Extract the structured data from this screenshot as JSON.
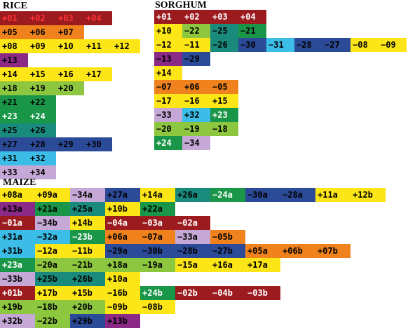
{
  "palette": {
    "darkred": "#9b1b1e",
    "orange": "#f0821e",
    "yellow": "#fde618",
    "purple": "#8a2a86",
    "green": "#8dc63f",
    "darkgreen": "#1a9648",
    "teal": "#1a8a7c",
    "navy": "#2b4a97",
    "skyblue": "#3bbde8",
    "lavender": "#c6a8d6",
    "text_light": "#ffffff",
    "text_dark": "#000000",
    "text_red": "#ff3333"
  },
  "sections": [
    {
      "key": "rice",
      "title": "RICE",
      "rows": [
        [
          {
            "t": "+01",
            "c": "darkred",
            "f": "text_red"
          },
          {
            "t": "+02",
            "c": "darkred",
            "f": "text_red"
          },
          {
            "t": "+03",
            "c": "darkred",
            "f": "text_red"
          },
          {
            "t": "+04",
            "c": "darkred",
            "f": "text_red"
          }
        ],
        [
          {
            "t": "+05",
            "c": "orange"
          },
          {
            "t": "+06",
            "c": "orange"
          },
          {
            "t": "+07",
            "c": "orange"
          }
        ],
        [
          {
            "t": "+08",
            "c": "yellow"
          },
          {
            "t": "+09",
            "c": "yellow"
          },
          {
            "t": "+10",
            "c": "yellow"
          },
          {
            "t": "+11",
            "c": "yellow"
          },
          {
            "t": "+12",
            "c": "yellow"
          }
        ],
        [
          {
            "t": "+13",
            "c": "purple"
          }
        ],
        [
          {
            "t": "+14",
            "c": "yellow"
          },
          {
            "t": "+15",
            "c": "yellow"
          },
          {
            "t": "+16",
            "c": "yellow"
          },
          {
            "t": "+17",
            "c": "yellow"
          }
        ],
        [
          {
            "t": "+18",
            "c": "green"
          },
          {
            "t": "+19",
            "c": "green"
          },
          {
            "t": "+20",
            "c": "green"
          }
        ],
        [
          {
            "t": "+21",
            "c": "darkgreen"
          },
          {
            "t": "+22",
            "c": "darkgreen"
          }
        ],
        [
          {
            "t": "+23",
            "c": "darkgreen",
            "f": "text_light"
          },
          {
            "t": "+24",
            "c": "darkgreen",
            "f": "text_light"
          }
        ],
        [
          {
            "t": "+25",
            "c": "teal"
          },
          {
            "t": "+26",
            "c": "teal"
          }
        ],
        [
          {
            "t": "+27",
            "c": "navy"
          },
          {
            "t": "+28",
            "c": "navy"
          },
          {
            "t": "+29",
            "c": "navy"
          },
          {
            "t": "+30",
            "c": "navy"
          }
        ],
        [
          {
            "t": "+31",
            "c": "skyblue"
          },
          {
            "t": "+32",
            "c": "skyblue"
          }
        ],
        [
          {
            "t": "+33",
            "c": "lavender"
          },
          {
            "t": "+34",
            "c": "lavender"
          }
        ]
      ]
    },
    {
      "key": "sorghum",
      "title": "SORGHUM",
      "rows": [
        [
          {
            "t": "+01",
            "c": "darkred",
            "f": "text_light"
          },
          {
            "t": "+02",
            "c": "darkred",
            "f": "text_light"
          },
          {
            "t": "+03",
            "c": "darkred",
            "f": "text_light"
          },
          {
            "t": "+04",
            "c": "darkred",
            "f": "text_light"
          }
        ],
        [
          {
            "t": "+10",
            "c": "yellow"
          },
          {
            "t": "−22",
            "c": "green"
          },
          {
            "t": "−25",
            "c": "teal"
          },
          {
            "t": "−21",
            "c": "darkgreen"
          }
        ],
        [
          {
            "t": "−12",
            "c": "yellow"
          },
          {
            "t": "−11",
            "c": "yellow"
          },
          {
            "t": "−26",
            "c": "teal"
          },
          {
            "t": "−30",
            "c": "navy"
          },
          {
            "t": "−31",
            "c": "skyblue"
          },
          {
            "t": "−28",
            "c": "navy"
          },
          {
            "t": "−27",
            "c": "navy"
          },
          {
            "t": "−08",
            "c": "yellow"
          },
          {
            "t": "−09",
            "c": "yellow"
          }
        ],
        [
          {
            "t": "−13",
            "c": "purple"
          },
          {
            "t": "−29",
            "c": "navy"
          }
        ],
        [
          {
            "t": "+14",
            "c": "yellow"
          }
        ],
        [
          {
            "t": "−07",
            "c": "orange"
          },
          {
            "t": "+06",
            "c": "orange"
          },
          {
            "t": "−05",
            "c": "orange"
          }
        ],
        [
          {
            "t": "−17",
            "c": "yellow"
          },
          {
            "t": "−16",
            "c": "yellow"
          },
          {
            "t": "+15",
            "c": "yellow"
          }
        ],
        [
          {
            "t": "−33",
            "c": "lavender"
          },
          {
            "t": "+32",
            "c": "skyblue"
          },
          {
            "t": "+23",
            "c": "darkgreen",
            "f": "text_light"
          }
        ],
        [
          {
            "t": "−20",
            "c": "green"
          },
          {
            "t": "−19",
            "c": "green"
          },
          {
            "t": "−18",
            "c": "green"
          }
        ],
        [
          {
            "t": "+24",
            "c": "darkgreen",
            "f": "text_light"
          },
          {
            "t": "−34",
            "c": "lavender"
          }
        ]
      ]
    },
    {
      "key": "maize",
      "title": "MAIZE",
      "rows": [
        [
          {
            "t": "+08a",
            "c": "yellow"
          },
          {
            "t": "+09a",
            "c": "yellow"
          },
          {
            "t": "−34a",
            "c": "lavender"
          },
          {
            "t": "+27a",
            "c": "navy"
          },
          {
            "t": "+14a",
            "c": "yellow"
          },
          {
            "t": "+26a",
            "c": "teal"
          },
          {
            "t": "−24a",
            "c": "darkgreen",
            "f": "text_light"
          },
          {
            "t": "−30a",
            "c": "navy"
          },
          {
            "t": "−28a",
            "c": "navy"
          },
          {
            "t": "+11a",
            "c": "yellow"
          },
          {
            "t": "+12b",
            "c": "yellow"
          }
        ],
        [
          {
            "t": "+13a",
            "c": "purple"
          },
          {
            "t": "+21a",
            "c": "darkgreen"
          },
          {
            "t": "+25a",
            "c": "teal"
          },
          {
            "t": "+10b",
            "c": "yellow"
          },
          {
            "t": "+22a",
            "c": "darkgreen"
          }
        ],
        [
          {
            "t": "−01a",
            "c": "darkred",
            "f": "text_light"
          },
          {
            "t": "−34b",
            "c": "lavender"
          },
          {
            "t": "+14b",
            "c": "yellow"
          },
          {
            "t": "−04a",
            "c": "darkred",
            "f": "text_light"
          },
          {
            "t": "−03a",
            "c": "darkred",
            "f": "text_light"
          },
          {
            "t": "−02a",
            "c": "darkred",
            "f": "text_light"
          }
        ],
        [
          {
            "t": "+31a",
            "c": "skyblue"
          },
          {
            "t": "−32a",
            "c": "skyblue"
          },
          {
            "t": "−23b",
            "c": "darkgreen",
            "f": "text_light"
          },
          {
            "t": "+06a",
            "c": "orange"
          },
          {
            "t": "−07a",
            "c": "orange"
          },
          {
            "t": "−33a",
            "c": "lavender"
          },
          {
            "t": "−05b",
            "c": "orange"
          }
        ],
        [
          {
            "t": "+31b",
            "c": "skyblue"
          },
          {
            "t": "−12a",
            "c": "yellow"
          },
          {
            "t": "−11b",
            "c": "yellow"
          },
          {
            "t": "−29a",
            "c": "navy"
          },
          {
            "t": "−30b",
            "c": "navy"
          },
          {
            "t": "−28b",
            "c": "navy"
          },
          {
            "t": "−27b",
            "c": "navy"
          },
          {
            "t": "+05a",
            "c": "orange"
          },
          {
            "t": "+06b",
            "c": "orange"
          },
          {
            "t": "+07b",
            "c": "orange"
          }
        ],
        [
          {
            "t": "+23a",
            "c": "darkgreen",
            "f": "text_light"
          },
          {
            "t": "−20a",
            "c": "green"
          },
          {
            "t": "−21b",
            "c": "green"
          },
          {
            "t": "+18a",
            "c": "green"
          },
          {
            "t": "−19a",
            "c": "green"
          },
          {
            "t": "−15a",
            "c": "yellow"
          },
          {
            "t": "+16a",
            "c": "yellow"
          },
          {
            "t": "+17a",
            "c": "yellow"
          }
        ],
        [
          {
            "t": "−33b",
            "c": "lavender"
          },
          {
            "t": "+25b",
            "c": "teal"
          },
          {
            "t": "+26b",
            "c": "teal"
          },
          {
            "t": "+10a",
            "c": "yellow"
          }
        ],
        [
          {
            "t": "+01b",
            "c": "darkred",
            "f": "text_light"
          },
          {
            "t": "+17b",
            "c": "yellow"
          },
          {
            "t": "+15b",
            "c": "yellow"
          },
          {
            "t": "−16b",
            "c": "yellow"
          },
          {
            "t": "+24b",
            "c": "darkgreen",
            "f": "text_light"
          },
          {
            "t": "−02b",
            "c": "darkred",
            "f": "text_light"
          },
          {
            "t": "−04b",
            "c": "darkred",
            "f": "text_light"
          },
          {
            "t": "−03b",
            "c": "darkred",
            "f": "text_light"
          }
        ],
        [
          {
            "t": "+19b",
            "c": "green"
          },
          {
            "t": "−18b",
            "c": "green"
          },
          {
            "t": "+20b",
            "c": "green"
          },
          {
            "t": "−09b",
            "c": "yellow"
          },
          {
            "t": "−08b",
            "c": "yellow"
          }
        ],
        [
          {
            "t": "+32b",
            "c": "lavender"
          },
          {
            "t": "−22b",
            "c": "green"
          },
          {
            "t": "+29b",
            "c": "navy"
          },
          {
            "t": "+13b",
            "c": "purple"
          }
        ]
      ]
    }
  ]
}
